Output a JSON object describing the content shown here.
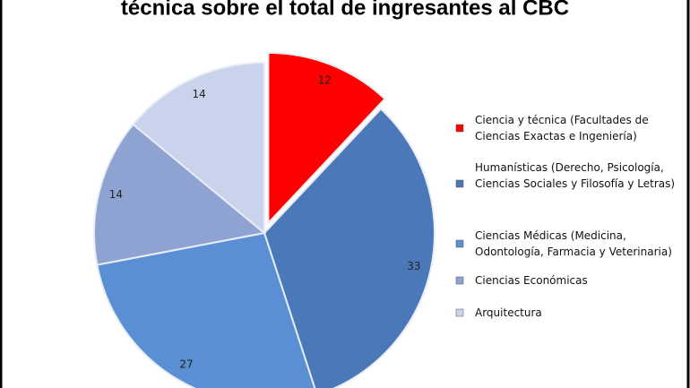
{
  "chart_data": {
    "type": "pie",
    "title": "técnica sobre el total de ingresantes al CBC",
    "categories": [
      "Ciencia y técnica (Facultades de Ciencias Exactas e Ingeniería)",
      "Humanísticas (Derecho, Psicología, Ciencias Sociales y Filosofía y Letras)",
      "Ciencias Médicas (Medicina, Odontología, Farmacia y Veterinaria)",
      "Ciencias Económicas",
      "Arquitectura"
    ],
    "values": [
      12,
      33,
      27,
      14,
      14
    ],
    "colors": [
      "#ff0000",
      "#4a78b8",
      "#5b8fd4",
      "#8fa3d2",
      "#c9d4ec"
    ]
  }
}
